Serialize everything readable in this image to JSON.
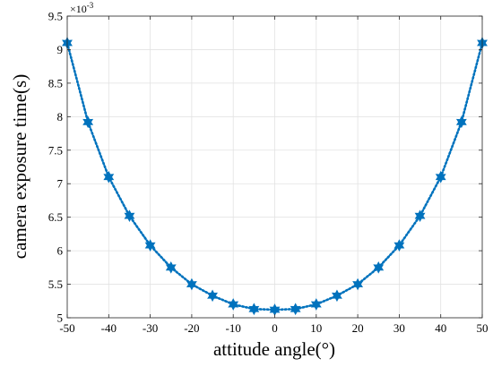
{
  "chart_data": {
    "type": "line",
    "xlabel": "attitude angle(°)",
    "ylabel": "camera exposure time(s)",
    "y_multiplier": {
      "base": "×10",
      "exponent": "-3"
    },
    "xlim": [
      -50,
      50
    ],
    "ylim": [
      5,
      9.5
    ],
    "xticks": [
      "-50",
      "-40",
      "-30",
      "-20",
      "-10",
      "0",
      "10",
      "20",
      "30",
      "40",
      "50"
    ],
    "yticks": [
      "5",
      "5.5",
      "6",
      "6.5",
      "7",
      "7.5",
      "8",
      "8.5",
      "9",
      "9.5"
    ],
    "grid": true,
    "line_style": "dotted",
    "marker": "hexagram",
    "color": "#0072BD",
    "series": [
      {
        "x": [
          -50,
          -45,
          -40,
          -35,
          -30,
          -25,
          -20,
          -15,
          -10,
          -5,
          0,
          5,
          10,
          15,
          20,
          25,
          30,
          35,
          40,
          45,
          50
        ],
        "values": [
          9.1,
          7.92,
          7.1,
          6.52,
          6.08,
          5.75,
          5.5,
          5.33,
          5.2,
          5.13,
          5.12,
          5.13,
          5.2,
          5.33,
          5.5,
          5.75,
          6.08,
          6.52,
          7.1,
          7.92,
          9.1
        ]
      }
    ]
  }
}
